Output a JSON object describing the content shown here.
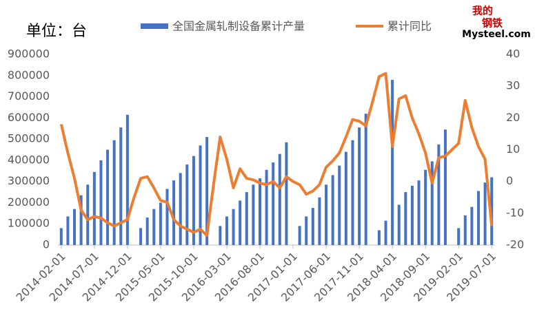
{
  "chart_data": {
    "type": "bar-line",
    "unit_label": "单位：台",
    "logo": [
      "我的",
      "钢铁",
      "Mysteel.com"
    ],
    "categories": [
      "2014-02-01",
      null,
      null,
      null,
      null,
      "2014-07-01",
      null,
      null,
      null,
      null,
      "2014-12-01",
      null,
      null,
      null,
      null,
      "2015-05-01",
      null,
      null,
      null,
      null,
      "2015-10-01",
      null,
      null,
      null,
      null,
      "2016-03-01",
      null,
      null,
      null,
      null,
      "2016-08-01",
      null,
      null,
      null,
      null,
      "2017-01-01",
      null,
      null,
      null,
      null,
      "2017-06-01",
      null,
      null,
      null,
      null,
      "2017-11-01",
      null,
      null,
      null,
      null,
      "2018-04-01",
      null,
      null,
      null,
      null,
      "2018-09-01",
      null,
      null,
      null,
      null,
      "2019-02-01",
      null,
      null,
      null,
      null,
      "2019-07-01"
    ],
    "series": [
      {
        "name": "全国金属轧制设备累计产量",
        "type": "bar",
        "color": "#4472c4",
        "values": [
          80000,
          135000,
          170000,
          235000,
          285000,
          345000,
          400000,
          450000,
          495000,
          555000,
          615000,
          null,
          80000,
          130000,
          170000,
          200000,
          265000,
          305000,
          340000,
          380000,
          420000,
          470000,
          510000,
          null,
          90000,
          135000,
          170000,
          210000,
          250000,
          285000,
          315000,
          355000,
          390000,
          430000,
          485000,
          null,
          90000,
          135000,
          175000,
          225000,
          285000,
          330000,
          375000,
          440000,
          495000,
          555000,
          620000,
          null,
          70000,
          115000,
          780000,
          190000,
          250000,
          280000,
          305000,
          355000,
          395000,
          475000,
          545000,
          null,
          80000,
          140000,
          180000,
          255000,
          295000,
          320000
        ]
      },
      {
        "name": "累计同比",
        "type": "line",
        "axis": "y2",
        "color": "#ed7d31",
        "values": [
          18,
          9,
          1,
          -9,
          -12,
          -11,
          -11.5,
          -13,
          -14,
          -13,
          -12,
          -5,
          1,
          1.5,
          -2,
          -6,
          -6.5,
          -12,
          -14,
          -15,
          -16,
          -15,
          -17,
          -1,
          14,
          7,
          -2,
          4,
          1,
          0.5,
          -0.5,
          -1,
          0,
          -2,
          1.5,
          0,
          -1,
          -4,
          -3,
          -1,
          4.5,
          6.5,
          9,
          14,
          19.5,
          19,
          17.5,
          25,
          33,
          34,
          11,
          26,
          27,
          20,
          15,
          9,
          -0.5,
          7.5,
          8,
          10,
          12,
          25.5,
          17,
          11,
          7,
          -14
        ]
      }
    ],
    "ylim": [
      0,
      900000
    ],
    "yticks": [
      0,
      100000,
      200000,
      300000,
      400000,
      500000,
      600000,
      700000,
      800000,
      900000
    ],
    "y2lim": [
      -20,
      40
    ],
    "y2ticks": [
      -20,
      -10,
      0,
      10,
      20,
      30,
      40
    ]
  }
}
